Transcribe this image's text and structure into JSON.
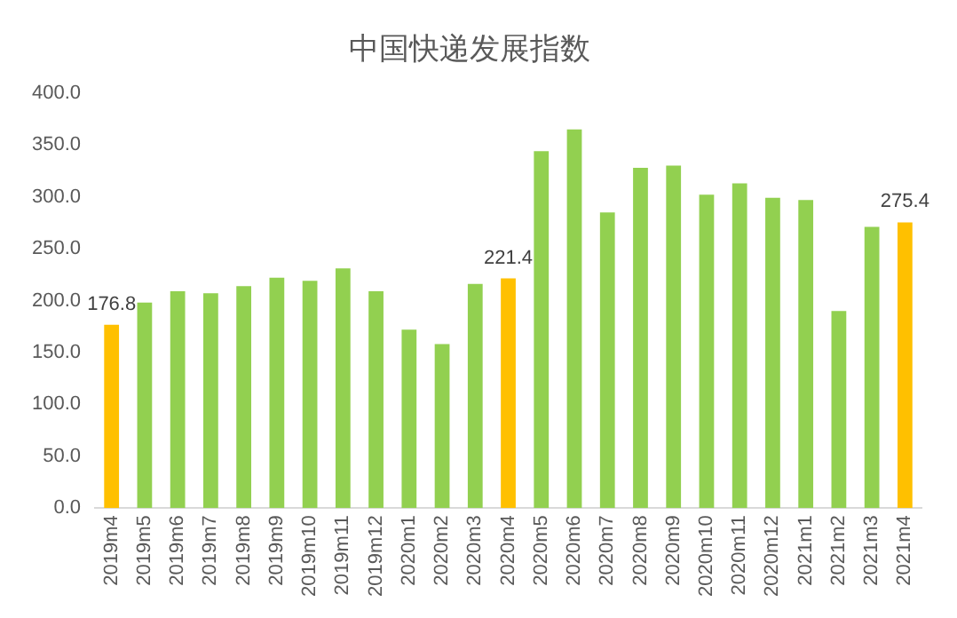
{
  "chart_data": {
    "type": "bar",
    "title": "中国快递发展指数",
    "categories": [
      "2019m4",
      "2019m5",
      "2019m6",
      "2019m7",
      "2019m8",
      "2019m9",
      "2019m10",
      "2019m11",
      "2019m12",
      "2020m1",
      "2020m2",
      "2020m3",
      "2020m4",
      "2020m5",
      "2020m6",
      "2020m7",
      "2020m8",
      "2020m9",
      "2020m10",
      "2020m11",
      "2020m12",
      "2021m1",
      "2021m2",
      "2021m3",
      "2021m4"
    ],
    "values": [
      176.8,
      198,
      209,
      207,
      214,
      222,
      219,
      231,
      209,
      172,
      158,
      216,
      221.4,
      344,
      365,
      285,
      328,
      330,
      302,
      313,
      299,
      297,
      190,
      271,
      275.4
    ],
    "colors": [
      "#ffc000",
      "#92d050",
      "#92d050",
      "#92d050",
      "#92d050",
      "#92d050",
      "#92d050",
      "#92d050",
      "#92d050",
      "#92d050",
      "#92d050",
      "#92d050",
      "#ffc000",
      "#92d050",
      "#92d050",
      "#92d050",
      "#92d050",
      "#92d050",
      "#92d050",
      "#92d050",
      "#92d050",
      "#92d050",
      "#92d050",
      "#92d050",
      "#ffc000"
    ],
    "value_labels": [
      "176.8",
      null,
      null,
      null,
      null,
      null,
      null,
      null,
      null,
      null,
      null,
      null,
      "221.4",
      null,
      null,
      null,
      null,
      null,
      null,
      null,
      null,
      null,
      null,
      null,
      "275.4"
    ],
    "ylim": [
      0,
      400
    ],
    "yticks": [
      {
        "value": 0,
        "label": "0.0"
      },
      {
        "value": 50,
        "label": "50.0"
      },
      {
        "value": 100,
        "label": "100.0"
      },
      {
        "value": 150,
        "label": "150.0"
      },
      {
        "value": 200,
        "label": "200.0"
      },
      {
        "value": 250,
        "label": "250.0"
      },
      {
        "value": 300,
        "label": "300.0"
      },
      {
        "value": 350,
        "label": "350.0"
      },
      {
        "value": 400,
        "label": "400.0"
      }
    ],
    "grid": false,
    "legend": false
  }
}
